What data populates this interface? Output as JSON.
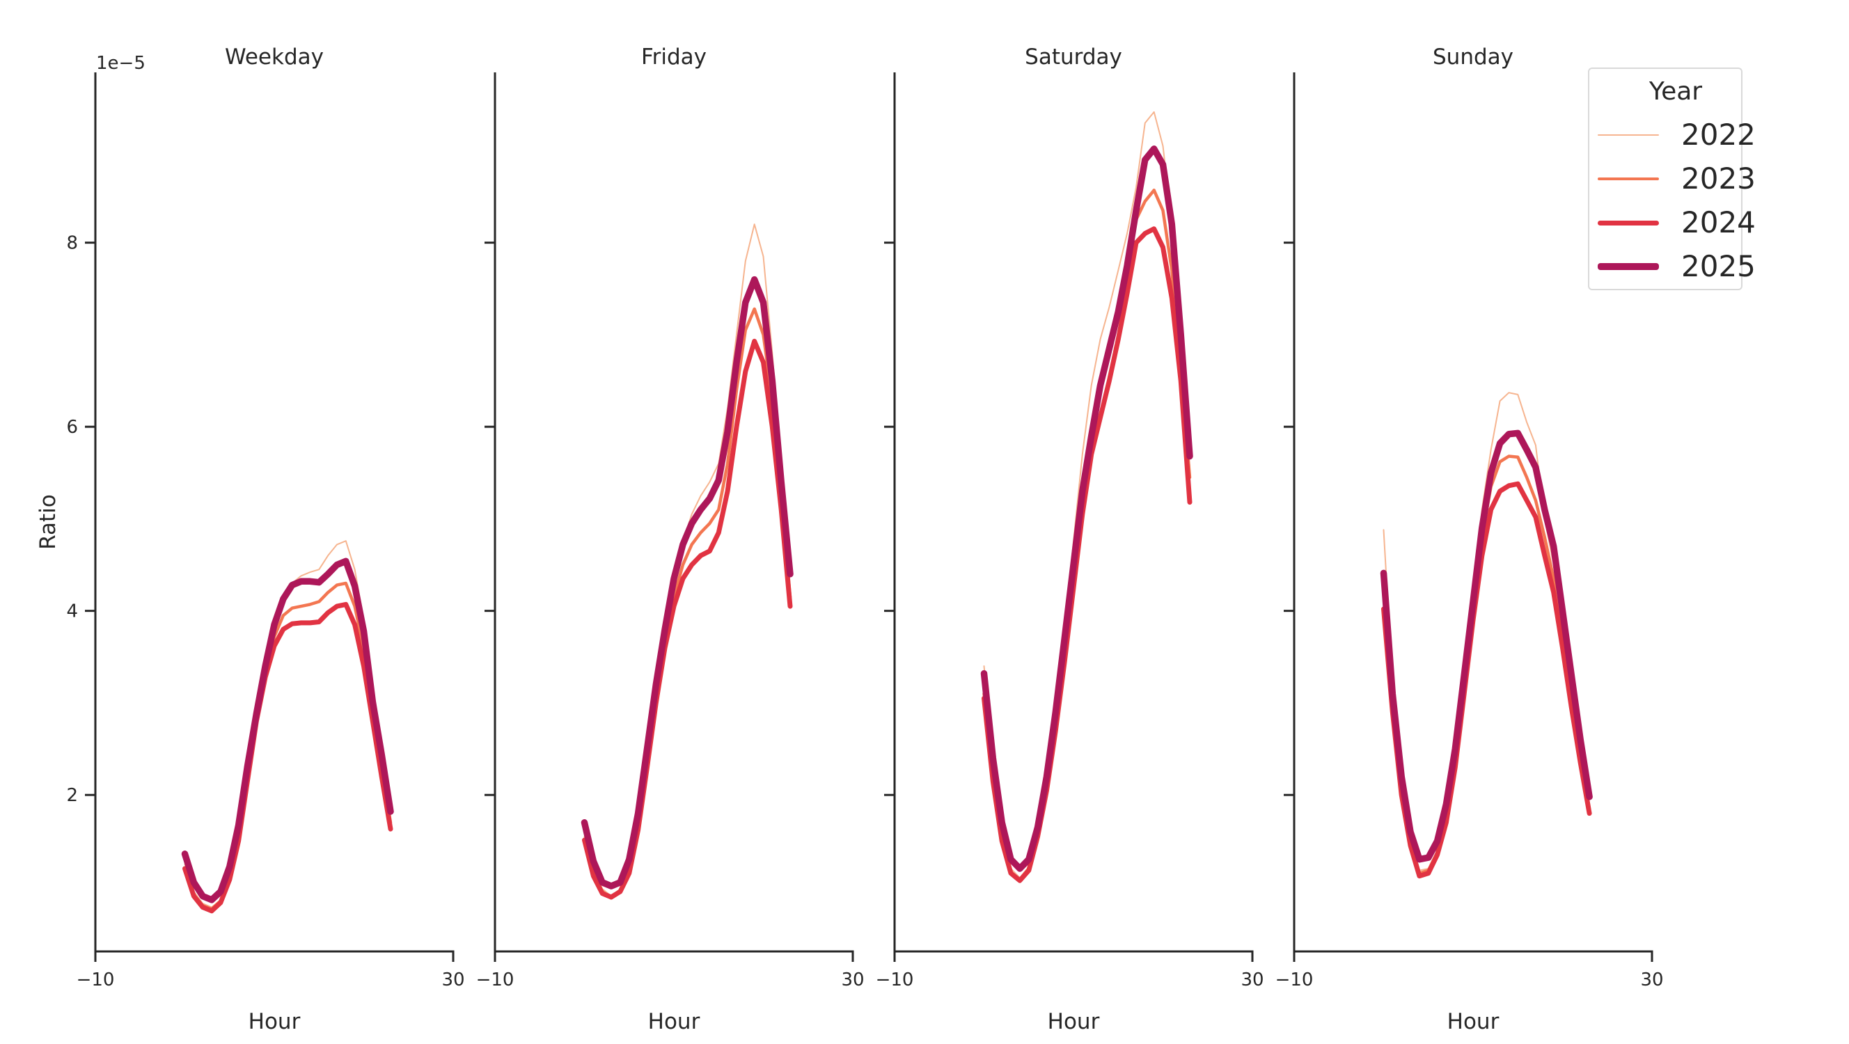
{
  "chart_data": {
    "type": "line",
    "layout": "facet-grid 1x4, shared y-axis",
    "ylabel": "Ratio",
    "xlabel": "Hour",
    "y_offset_label": "1e−5",
    "y_scale": 1e-05,
    "ylim": [
      0.3,
      9.85
    ],
    "xlim": [
      -10,
      30
    ],
    "xticks": [
      -10,
      30
    ],
    "yticks": [
      2,
      4,
      6,
      8
    ],
    "grid": false,
    "legend": {
      "title": "Year",
      "position": "upper right",
      "entries": [
        "2022",
        "2023",
        "2024",
        "2025"
      ]
    },
    "series_style": [
      {
        "name": "2022",
        "color": "#f6b48f",
        "width": 2
      },
      {
        "name": "2023",
        "color": "#f37651",
        "width": 4.5
      },
      {
        "name": "2024",
        "color": "#e13342",
        "width": 7
      },
      {
        "name": "2025",
        "color": "#ad1759",
        "width": 9.5
      }
    ],
    "x": [
      0,
      1,
      2,
      3,
      4,
      5,
      6,
      7,
      8,
      9,
      10,
      11,
      12,
      13,
      14,
      15,
      16,
      17,
      18,
      19,
      20,
      21,
      22,
      23
    ],
    "panels": [
      {
        "title": "Weekday",
        "series": [
          {
            "name": "2022",
            "values": [
              1.25,
              0.95,
              0.82,
              0.78,
              0.86,
              1.12,
              1.6,
              2.3,
              2.95,
              3.45,
              3.85,
              4.15,
              4.3,
              4.38,
              4.42,
              4.45,
              4.6,
              4.72,
              4.76,
              4.45,
              3.9,
              3.1,
              2.4,
              1.75
            ]
          },
          {
            "name": "2023",
            "values": [
              1.2,
              0.92,
              0.8,
              0.76,
              0.85,
              1.1,
              1.55,
              2.2,
              2.85,
              3.35,
              3.72,
              3.95,
              4.03,
              4.05,
              4.07,
              4.1,
              4.2,
              4.28,
              4.3,
              4.05,
              3.6,
              2.95,
              2.3,
              1.7
            ]
          },
          {
            "name": "2024",
            "values": [
              1.2,
              0.9,
              0.78,
              0.74,
              0.83,
              1.08,
              1.5,
              2.15,
              2.8,
              3.28,
              3.62,
              3.8,
              3.86,
              3.87,
              3.87,
              3.88,
              3.98,
              4.05,
              4.07,
              3.85,
              3.4,
              2.8,
              2.2,
              1.63
            ]
          },
          {
            "name": "2025",
            "values": [
              1.36,
              1.05,
              0.9,
              0.86,
              0.95,
              1.22,
              1.67,
              2.31,
              2.88,
              3.4,
              3.85,
              4.13,
              4.28,
              4.32,
              4.32,
              4.31,
              4.4,
              4.5,
              4.54,
              4.27,
              3.78,
              3.01,
              2.44,
              1.82
            ]
          }
        ]
      },
      {
        "title": "Friday",
        "series": [
          {
            "name": "2022",
            "values": [
              1.55,
              1.2,
              0.98,
              0.9,
              0.98,
              1.2,
              1.7,
              2.4,
              3.1,
              3.75,
              4.3,
              4.75,
              5.05,
              5.25,
              5.4,
              5.6,
              6.2,
              7.0,
              7.8,
              8.2,
              7.85,
              6.8,
              5.6,
              4.2
            ]
          },
          {
            "name": "2023",
            "values": [
              1.52,
              1.15,
              0.95,
              0.88,
              0.96,
              1.18,
              1.65,
              2.35,
              3.05,
              3.65,
              4.15,
              4.5,
              4.72,
              4.85,
              4.95,
              5.1,
              5.6,
              6.4,
              7.05,
              7.28,
              7.0,
              6.3,
              5.3,
              4.15
            ]
          },
          {
            "name": "2024",
            "values": [
              1.51,
              1.12,
              0.93,
              0.89,
              0.95,
              1.15,
              1.62,
              2.3,
              3.0,
              3.6,
              4.05,
              4.35,
              4.5,
              4.6,
              4.65,
              4.85,
              5.3,
              6.0,
              6.6,
              6.93,
              6.7,
              6.0,
              5.1,
              4.05
            ]
          },
          {
            "name": "2025",
            "values": [
              1.7,
              1.28,
              1.05,
              1.01,
              1.05,
              1.3,
              1.8,
              2.5,
              3.2,
              3.8,
              4.35,
              4.72,
              4.95,
              5.1,
              5.22,
              5.42,
              5.95,
              6.7,
              7.35,
              7.6,
              7.35,
              6.5,
              5.4,
              4.4
            ]
          }
        ]
      },
      {
        "title": "Saturday",
        "series": [
          {
            "name": "2022",
            "values": [
              3.4,
              2.35,
              1.62,
              1.2,
              1.1,
              1.22,
              1.6,
              2.2,
              2.95,
              3.8,
              4.75,
              5.7,
              6.45,
              6.95,
              7.3,
              7.7,
              8.1,
              8.6,
              9.3,
              9.42,
              9.05,
              8.2,
              6.9,
              5.55
            ]
          },
          {
            "name": "2023",
            "values": [
              3.1,
              2.2,
              1.55,
              1.15,
              1.08,
              1.2,
              1.58,
              2.15,
              2.85,
              3.65,
              4.5,
              5.3,
              5.95,
              6.45,
              6.85,
              7.3,
              7.75,
              8.25,
              8.45,
              8.57,
              8.35,
              7.7,
              6.6,
              5.45
            ]
          },
          {
            "name": "2024",
            "values": [
              3.05,
              2.15,
              1.5,
              1.15,
              1.07,
              1.18,
              1.55,
              2.05,
              2.7,
              3.45,
              4.25,
              5.05,
              5.7,
              6.1,
              6.5,
              6.95,
              7.45,
              8.0,
              8.1,
              8.15,
              7.95,
              7.4,
              6.5,
              5.18
            ]
          },
          {
            "name": "2025",
            "values": [
              3.32,
              2.4,
              1.7,
              1.3,
              1.2,
              1.3,
              1.65,
              2.2,
              2.9,
              3.7,
              4.5,
              5.3,
              5.9,
              6.45,
              6.85,
              7.25,
              7.75,
              8.35,
              8.9,
              9.02,
              8.85,
              8.2,
              7.0,
              5.68
            ]
          }
        ]
      },
      {
        "title": "Sunday",
        "series": [
          {
            "name": "2022",
            "values": [
              4.88,
              3.2,
              2.15,
              1.55,
              1.18,
              1.2,
              1.4,
              1.8,
              2.45,
              3.3,
              4.2,
              5.1,
              5.75,
              6.28,
              6.37,
              6.35,
              6.05,
              5.8,
              5.0,
              4.5,
              3.85,
              3.15,
              2.5,
              1.9
            ]
          },
          {
            "name": "2023",
            "values": [
              4.0,
              2.95,
              2.05,
              1.5,
              1.15,
              1.18,
              1.38,
              1.75,
              2.4,
              3.2,
              4.05,
              4.8,
              5.35,
              5.62,
              5.68,
              5.67,
              5.45,
              5.2,
              4.8,
              4.35,
              3.75,
              3.05,
              2.45,
              1.85
            ]
          },
          {
            "name": "2024",
            "values": [
              4.02,
              2.9,
              2.0,
              1.45,
              1.12,
              1.15,
              1.35,
              1.7,
              2.3,
              3.1,
              3.9,
              4.6,
              5.1,
              5.3,
              5.36,
              5.38,
              5.2,
              5.02,
              4.6,
              4.2,
              3.6,
              2.95,
              2.35,
              1.8
            ]
          },
          {
            "name": "2025",
            "values": [
              4.41,
              3.1,
              2.2,
              1.6,
              1.3,
              1.32,
              1.5,
              1.9,
              2.5,
              3.3,
              4.1,
              4.9,
              5.5,
              5.82,
              5.92,
              5.93,
              5.75,
              5.56,
              5.1,
              4.7,
              4.0,
              3.3,
              2.6,
              1.98
            ]
          }
        ]
      }
    ]
  },
  "legend": {
    "title": "Year",
    "items": [
      {
        "label": "2022",
        "color": "#f6b48f",
        "width": 2
      },
      {
        "label": "2023",
        "color": "#f37651",
        "width": 4.5
      },
      {
        "label": "2024",
        "color": "#e13342",
        "width": 7
      },
      {
        "label": "2025",
        "color": "#ad1759",
        "width": 9.5
      }
    ]
  }
}
